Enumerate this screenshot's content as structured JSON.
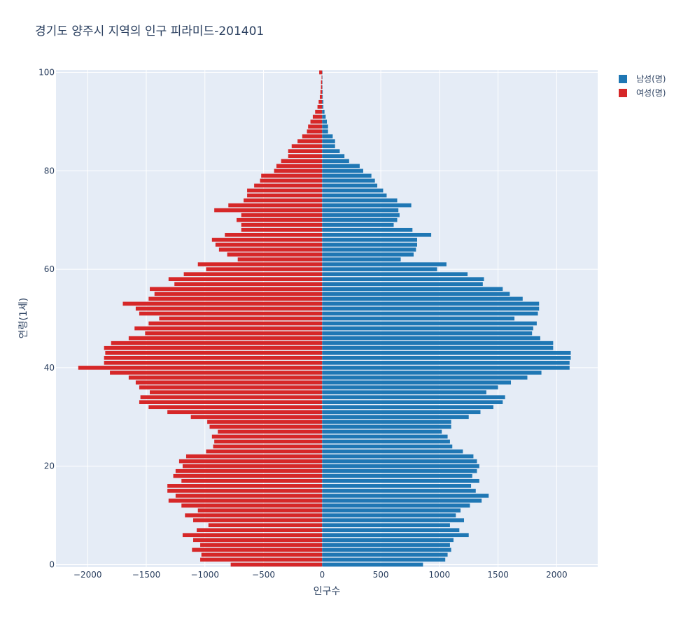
{
  "chart_data": {
    "type": "bar",
    "orientation": "horizontal",
    "title": "경기도 양주시 지역의 인구 피라미드-201401",
    "xlabel": "인구수",
    "ylabel": "연령(1세)",
    "xlim": [
      -2270,
      2350
    ],
    "ylim": [
      -0.5,
      100.5
    ],
    "x_ticks": [
      -2000,
      -1500,
      -1000,
      -500,
      0,
      500,
      1000,
      1500,
      2000
    ],
    "x_tick_labels": [
      "−2000",
      "−1500",
      "−1000",
      "−500",
      "0",
      "500",
      "1000",
      "1500",
      "2000"
    ],
    "y_ticks": [
      0,
      20,
      40,
      60,
      80,
      100
    ],
    "y_tick_labels": [
      "0",
      "20",
      "40",
      "60",
      "80",
      "100"
    ],
    "grid": true,
    "legend_position": "top-right",
    "ages": [
      0,
      1,
      2,
      3,
      4,
      5,
      6,
      7,
      8,
      9,
      10,
      11,
      12,
      13,
      14,
      15,
      16,
      17,
      18,
      19,
      20,
      21,
      22,
      23,
      24,
      25,
      26,
      27,
      28,
      29,
      30,
      31,
      32,
      33,
      34,
      35,
      36,
      37,
      38,
      39,
      40,
      41,
      42,
      43,
      44,
      45,
      46,
      47,
      48,
      49,
      50,
      51,
      52,
      53,
      54,
      55,
      56,
      57,
      58,
      59,
      60,
      61,
      62,
      63,
      64,
      65,
      66,
      67,
      68,
      69,
      70,
      71,
      72,
      73,
      74,
      75,
      76,
      77,
      78,
      79,
      80,
      81,
      82,
      83,
      84,
      85,
      86,
      87,
      88,
      89,
      90,
      91,
      92,
      93,
      94,
      95,
      96,
      97,
      98,
      99,
      100
    ],
    "series": [
      {
        "name": "남성(명)",
        "color": "#1f77b4",
        "values": [
          860,
          1050,
          1070,
          1100,
          1090,
          1120,
          1250,
          1170,
          1090,
          1210,
          1140,
          1180,
          1260,
          1360,
          1420,
          1310,
          1270,
          1340,
          1280,
          1320,
          1340,
          1320,
          1290,
          1200,
          1110,
          1090,
          1070,
          1020,
          1100,
          1100,
          1250,
          1350,
          1460,
          1540,
          1560,
          1400,
          1500,
          1610,
          1750,
          1870,
          2110,
          2110,
          2120,
          2120,
          1970,
          1970,
          1860,
          1790,
          1800,
          1830,
          1640,
          1840,
          1850,
          1850,
          1710,
          1600,
          1540,
          1370,
          1380,
          1240,
          980,
          1060,
          670,
          780,
          800,
          810,
          810,
          930,
          770,
          610,
          640,
          660,
          650,
          760,
          640,
          550,
          520,
          470,
          450,
          420,
          350,
          320,
          230,
          190,
          150,
          110,
          110,
          90,
          50,
          50,
          40,
          30,
          20,
          10,
          10,
          5,
          5,
          3,
          3,
          2,
          2
        ]
      },
      {
        "name": "여성(명)",
        "color": "#d62728",
        "values": [
          -780,
          -1040,
          -1030,
          -1110,
          -1040,
          -1100,
          -1190,
          -1070,
          -970,
          -1100,
          -1170,
          -1060,
          -1200,
          -1310,
          -1250,
          -1320,
          -1320,
          -1200,
          -1270,
          -1250,
          -1190,
          -1220,
          -1160,
          -990,
          -930,
          -920,
          -940,
          -890,
          -960,
          -980,
          -1120,
          -1320,
          -1480,
          -1560,
          -1550,
          -1470,
          -1560,
          -1590,
          -1650,
          -1810,
          -2080,
          -1860,
          -1860,
          -1850,
          -1860,
          -1800,
          -1650,
          -1510,
          -1600,
          -1480,
          -1390,
          -1560,
          -1590,
          -1700,
          -1480,
          -1430,
          -1470,
          -1260,
          -1310,
          -1180,
          -990,
          -1060,
          -720,
          -810,
          -880,
          -910,
          -940,
          -830,
          -690,
          -690,
          -730,
          -690,
          -920,
          -800,
          -670,
          -640,
          -640,
          -580,
          -530,
          -520,
          -410,
          -390,
          -350,
          -290,
          -290,
          -260,
          -210,
          -170,
          -130,
          -120,
          -100,
          -80,
          -60,
          -40,
          -30,
          -20,
          -15,
          -10,
          -10,
          -5,
          -25
        ]
      }
    ]
  }
}
